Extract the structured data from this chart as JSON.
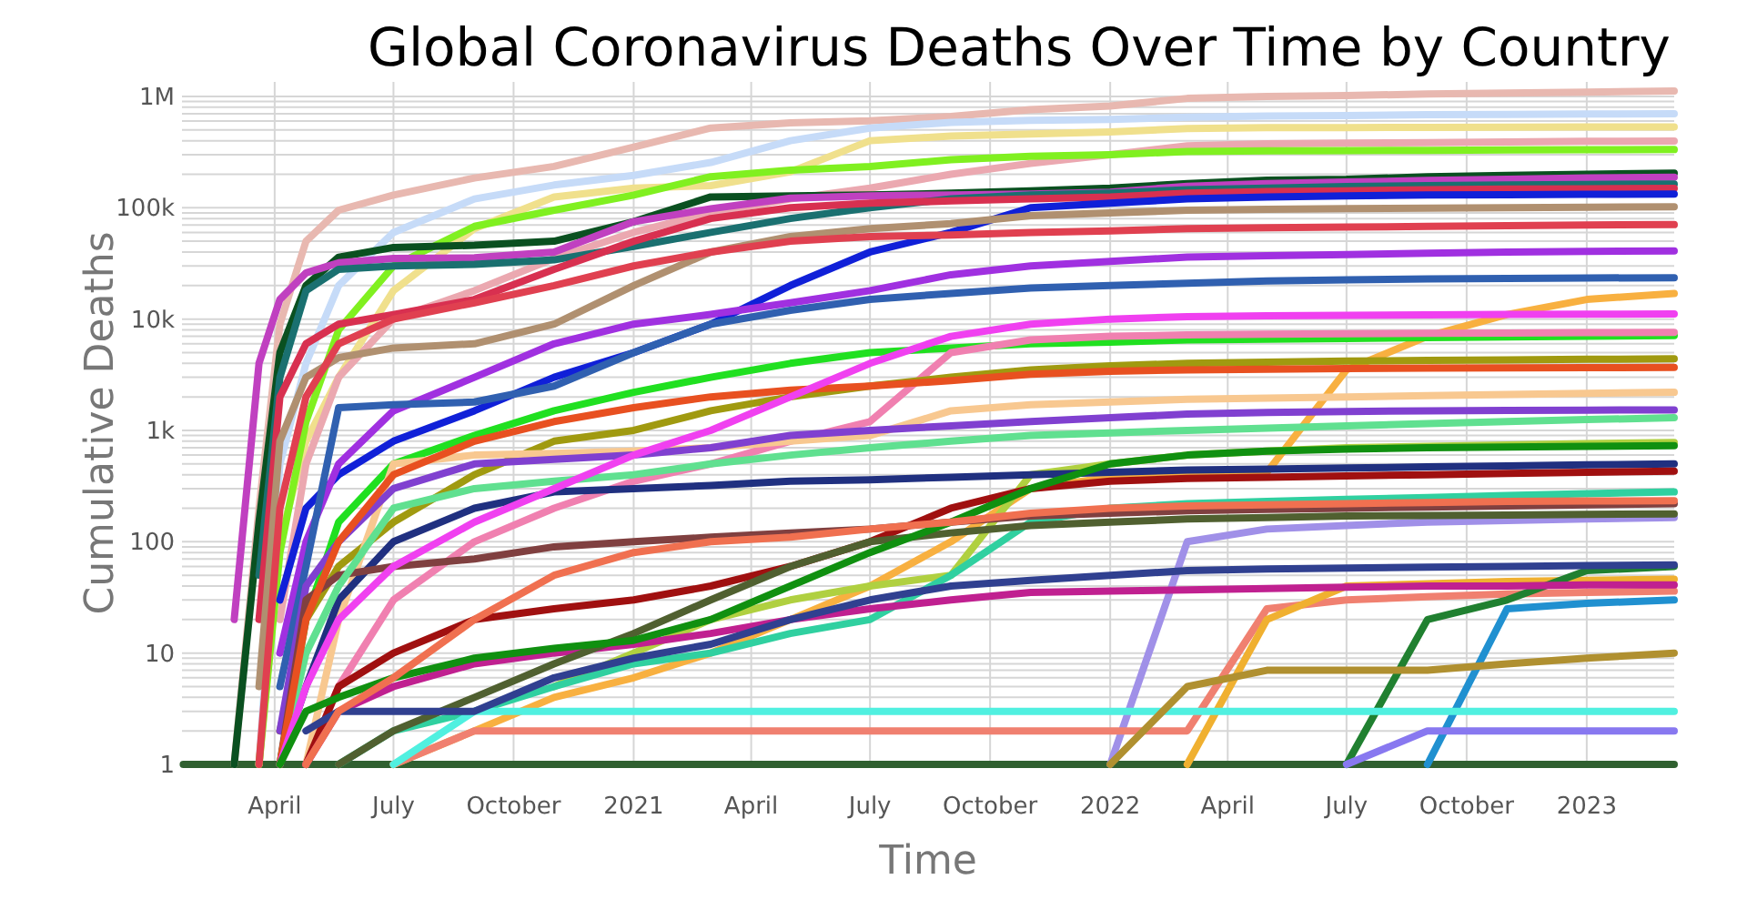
{
  "chart_data": {
    "type": "line",
    "title": "Global Coronavirus Deaths Over Time by Country",
    "xlabel": "Time",
    "ylabel": "Cumulative Deaths",
    "log": true,
    "grid": true,
    "xlim": [
      "2020-01-21",
      "2023-03-09"
    ],
    "ylim": [
      1,
      1350000
    ],
    "xticks": [
      {
        "value": "2020-04-01",
        "label": "April"
      },
      {
        "value": "2020-07-01",
        "label": "July"
      },
      {
        "value": "2020-10-01",
        "label": "October"
      },
      {
        "value": "2021-01-01",
        "label": "2021"
      },
      {
        "value": "2021-04-01",
        "label": "April"
      },
      {
        "value": "2021-07-01",
        "label": "July"
      },
      {
        "value": "2021-10-01",
        "label": "October"
      },
      {
        "value": "2022-01-01",
        "label": "2022"
      },
      {
        "value": "2022-04-01",
        "label": "April"
      },
      {
        "value": "2022-07-01",
        "label": "July"
      },
      {
        "value": "2022-10-01",
        "label": "October"
      },
      {
        "value": "2023-01-01",
        "label": "2023"
      }
    ],
    "yticks": [
      1,
      {
        "value": 2,
        "label": null
      },
      {
        "value": 3,
        "label": null
      },
      {
        "value": 4,
        "label": null
      },
      {
        "value": 5,
        "label": null
      },
      {
        "value": 6,
        "label": null
      },
      {
        "value": 7,
        "label": null
      },
      {
        "value": 8,
        "label": null
      },
      {
        "value": 9,
        "label": null
      },
      10,
      {
        "value": 20,
        "label": null
      },
      {
        "value": 30,
        "label": null
      },
      {
        "value": 40,
        "label": null
      },
      {
        "value": 50,
        "label": null
      },
      {
        "value": 60,
        "label": null
      },
      {
        "value": 70,
        "label": null
      },
      {
        "value": 80,
        "label": null
      },
      {
        "value": 90,
        "label": null
      },
      100,
      {
        "value": 200,
        "label": null
      },
      {
        "value": 300,
        "label": null
      },
      {
        "value": 400,
        "label": null
      },
      {
        "value": 500,
        "label": null
      },
      {
        "value": 600,
        "label": null
      },
      {
        "value": 700,
        "label": null
      },
      {
        "value": 800,
        "label": null
      },
      {
        "value": 900,
        "label": null
      },
      {
        "value": 1000,
        "label": "1k"
      },
      {
        "value": 2000,
        "label": null
      },
      {
        "value": 3000,
        "label": null
      },
      {
        "value": 4000,
        "label": null
      },
      {
        "value": 5000,
        "label": null
      },
      {
        "value": 6000,
        "label": null
      },
      {
        "value": 7000,
        "label": null
      },
      {
        "value": 8000,
        "label": null
      },
      {
        "value": 9000,
        "label": null
      },
      {
        "value": 10000,
        "label": "10k"
      },
      {
        "value": 20000,
        "label": null
      },
      {
        "value": 30000,
        "label": null
      },
      {
        "value": 40000,
        "label": null
      },
      {
        "value": 50000,
        "label": null
      },
      {
        "value": 60000,
        "label": null
      },
      {
        "value": 70000,
        "label": null
      },
      {
        "value": 80000,
        "label": null
      },
      {
        "value": 90000,
        "label": null
      },
      {
        "value": 100000,
        "label": "100k"
      },
      {
        "value": 200000,
        "label": null
      },
      {
        "value": 300000,
        "label": null
      },
      {
        "value": 400000,
        "label": null
      },
      {
        "value": 500000,
        "label": null
      },
      {
        "value": 600000,
        "label": null
      },
      {
        "value": 700000,
        "label": null
      },
      {
        "value": 800000,
        "label": null
      },
      {
        "value": 900000,
        "label": null
      },
      {
        "value": 1000000,
        "label": "1M"
      }
    ],
    "x": [
      "2020-01-22",
      "2020-03-01",
      "2020-03-20",
      "2020-04-05",
      "2020-04-25",
      "2020-05-20",
      "2020-07-01",
      "2020-09-01",
      "2020-11-01",
      "2021-01-01",
      "2021-03-01",
      "2021-05-01",
      "2021-07-01",
      "2021-09-01",
      "2021-11-01",
      "2022-01-01",
      "2022-03-01",
      "2022-05-01",
      "2022-07-01",
      "2022-09-01",
      "2022-11-01",
      "2023-01-01",
      "2023-03-09"
    ],
    "series": [
      {
        "color": "#306030",
        "values": [
          1,
          1,
          1,
          1,
          1,
          1,
          1,
          1,
          1,
          1,
          1,
          1,
          1,
          1,
          1,
          1,
          1,
          1,
          1,
          1,
          1,
          1,
          1
        ]
      },
      {
        "color": "#e8b8b0",
        "values": [
          null,
          1,
          200,
          9000,
          50000,
          95000,
          130000,
          185000,
          235000,
          350000,
          520000,
          580000,
          605000,
          660000,
          760000,
          820000,
          960000,
          1000000,
          1020000,
          1050000,
          1070000,
          1090000,
          1120000
        ]
      },
      {
        "color": "#c6dbf8",
        "values": [
          null,
          null,
          1,
          500,
          4000,
          20000,
          60000,
          120000,
          160000,
          195000,
          255000,
          400000,
          520000,
          585000,
          610000,
          620000,
          650000,
          665000,
          672000,
          685000,
          688000,
          695000,
          700000
        ]
      },
      {
        "color": "#f0e08c",
        "values": [
          null,
          null,
          1,
          100,
          800,
          3000,
          18000,
          65000,
          125000,
          150000,
          158000,
          210000,
          400000,
          440000,
          460000,
          480000,
          515000,
          524000,
          525000,
          528000,
          530000,
          530700,
          530800
        ]
      },
      {
        "color": "#eba8b0",
        "values": [
          null,
          null,
          null,
          20,
          500,
          3000,
          10000,
          18000,
          35000,
          60000,
          90000,
          120000,
          150000,
          200000,
          250000,
          300000,
          360000,
          375000,
          380000,
          385000,
          390000,
          395000,
          398000
        ]
      },
      {
        "color": "#80f020",
        "values": [
          null,
          null,
          1,
          80,
          1200,
          8000,
          30000,
          68000,
          95000,
          130000,
          190000,
          218000,
          235000,
          270000,
          290000,
          300000,
          320000,
          324000,
          326000,
          328000,
          330000,
          332000,
          333000
        ]
      },
      {
        "color": "#0a5020",
        "values": [
          null,
          1,
          150,
          5000,
          20000,
          36000,
          44000,
          46000,
          50000,
          75000,
          125000,
          128000,
          130000,
          135000,
          142000,
          150000,
          165000,
          177000,
          180000,
          190000,
          195000,
          200000,
          205000
        ]
      },
      {
        "color": "#c040c0",
        "values": [
          null,
          20,
          4000,
          15000,
          26000,
          32000,
          35000,
          35500,
          40000,
          75000,
          98000,
          122000,
          128000,
          130000,
          133000,
          138000,
          156000,
          165000,
          170000,
          176000,
          180000,
          185000,
          188000
        ]
      },
      {
        "color": "#1a7070",
        "values": [
          null,
          null,
          50,
          3000,
          18000,
          28000,
          30000,
          31000,
          34000,
          45000,
          60000,
          80000,
          100000,
          120000,
          130000,
          135000,
          145000,
          150000,
          155000,
          158000,
          160000,
          162000,
          163000
        ]
      },
      {
        "color": "#d83050",
        "values": [
          null,
          null,
          20,
          2000,
          6000,
          9000,
          11000,
          15000,
          28000,
          50000,
          80000,
          100000,
          110000,
          115000,
          120000,
          125000,
          135000,
          140000,
          142000,
          145000,
          147000,
          148000,
          149000
        ]
      },
      {
        "color": "#1020d8",
        "values": [
          null,
          null,
          null,
          30,
          200,
          400,
          800,
          1500,
          3000,
          5000,
          9000,
          20000,
          40000,
          60000,
          100000,
          110000,
          120000,
          125000,
          128000,
          130000,
          131000,
          132000,
          133000
        ]
      },
      {
        "color": "#b09070",
        "values": [
          null,
          null,
          5,
          800,
          3000,
          4500,
          5500,
          6000,
          9000,
          20000,
          40000,
          55000,
          65000,
          72000,
          85000,
          90000,
          95000,
          97000,
          98000,
          99000,
          100000,
          101000,
          102000
        ]
      },
      {
        "color": "#e04050",
        "values": [
          null,
          null,
          1,
          200,
          2000,
          6000,
          10000,
          14000,
          20000,
          30000,
          40000,
          50000,
          55000,
          57000,
          60000,
          62000,
          65000,
          66000,
          67000,
          68000,
          69000,
          70000,
          70500
        ]
      },
      {
        "color": "#a030e0",
        "values": [
          null,
          null,
          null,
          10,
          100,
          500,
          1500,
          3000,
          6000,
          9000,
          11000,
          14000,
          18000,
          25000,
          30000,
          33000,
          36000,
          37000,
          38000,
          39000,
          40000,
          40500,
          41000
        ]
      },
      {
        "color": "#3060b0",
        "values": [
          null,
          null,
          null,
          5,
          60,
          1600,
          1700,
          1800,
          2500,
          5000,
          9000,
          12000,
          15000,
          17000,
          19000,
          20000,
          21000,
          22000,
          22500,
          23000,
          23200,
          23400,
          23500
        ]
      },
      {
        "color": "#f8b040",
        "values": [
          null,
          null,
          null,
          null,
          null,
          null,
          1,
          2,
          4,
          6,
          10,
          20,
          40,
          100,
          300,
          380,
          400,
          420,
          3500,
          7000,
          11000,
          15000,
          17000
        ]
      },
      {
        "color": "#20e020",
        "values": [
          null,
          null,
          null,
          1,
          20,
          150,
          500,
          900,
          1500,
          2200,
          3000,
          4000,
          5000,
          5500,
          6000,
          6200,
          6500,
          6600,
          6700,
          6800,
          6900,
          7000,
          7100
        ]
      },
      {
        "color": "#f080b0",
        "values": [
          null,
          null,
          null,
          null,
          1,
          5,
          30,
          100,
          200,
          350,
          500,
          800,
          1200,
          5000,
          6500,
          7000,
          7200,
          7300,
          7400,
          7450,
          7500,
          7550,
          7600
        ]
      },
      {
        "color": "#a09a10",
        "values": [
          null,
          null,
          null,
          2,
          20,
          60,
          150,
          400,
          800,
          1000,
          1500,
          2000,
          2500,
          3000,
          3500,
          3800,
          4000,
          4100,
          4200,
          4250,
          4300,
          4350,
          4400
        ]
      },
      {
        "color": "#f8c890",
        "values": [
          null,
          null,
          null,
          null,
          1,
          20,
          500,
          600,
          620,
          650,
          700,
          800,
          900,
          1500,
          1700,
          1800,
          1900,
          1950,
          2000,
          2050,
          2100,
          2150,
          2200
        ]
      },
      {
        "color": "#8040d0",
        "values": [
          null,
          null,
          null,
          2,
          40,
          100,
          300,
          500,
          550,
          600,
          700,
          900,
          1000,
          1100,
          1200,
          1300,
          1400,
          1450,
          1480,
          1500,
          1510,
          1520,
          1530
        ]
      },
      {
        "color": "#b0d040",
        "values": [
          null,
          null,
          null,
          null,
          null,
          null,
          null,
          null,
          5,
          10,
          20,
          30,
          40,
          50,
          400,
          500,
          600,
          650,
          700,
          720,
          740,
          760,
          780
        ]
      },
      {
        "color": "#203080",
        "values": [
          null,
          null,
          null,
          1,
          5,
          30,
          100,
          200,
          280,
          300,
          320,
          350,
          360,
          380,
          400,
          420,
          440,
          450,
          460,
          470,
          480,
          490,
          500
        ]
      },
      {
        "color": "#30d0a0",
        "values": [
          null,
          null,
          null,
          null,
          null,
          1,
          2,
          3,
          5,
          8,
          10,
          15,
          20,
          50,
          150,
          200,
          220,
          230,
          240,
          250,
          260,
          270,
          280
        ]
      },
      {
        "color": "#804040",
        "values": [
          null,
          null,
          null,
          1,
          30,
          50,
          60,
          70,
          90,
          100,
          110,
          120,
          130,
          150,
          170,
          180,
          190,
          195,
          200,
          205,
          210,
          215,
          220
        ]
      },
      {
        "color": "#60e090",
        "values": [
          null,
          null,
          null,
          1,
          10,
          40,
          200,
          300,
          350,
          400,
          500,
          600,
          700,
          800,
          900,
          950,
          1000,
          1050,
          1100,
          1150,
          1200,
          1250,
          1300
        ]
      },
      {
        "color": "#a01010",
        "values": [
          null,
          null,
          null,
          null,
          1,
          5,
          10,
          20,
          25,
          30,
          40,
          60,
          100,
          200,
          300,
          350,
          370,
          380,
          390,
          400,
          410,
          420,
          430
        ]
      },
      {
        "color": "#a090e8",
        "values": [
          null,
          null,
          null,
          null,
          null,
          null,
          null,
          null,
          null,
          null,
          null,
          null,
          null,
          null,
          null,
          1,
          100,
          130,
          140,
          150,
          155,
          160,
          165
        ]
      },
      {
        "color": "#f08070",
        "values": [
          null,
          null,
          null,
          null,
          null,
          null,
          1,
          2,
          2,
          2,
          2,
          2,
          2,
          2,
          2,
          2,
          2,
          25,
          30,
          32,
          34,
          35,
          36
        ]
      },
      {
        "color": "#f0b030",
        "values": [
          null,
          null,
          null,
          null,
          null,
          null,
          null,
          null,
          null,
          null,
          null,
          null,
          null,
          null,
          null,
          null,
          1,
          20,
          40,
          42,
          44,
          45,
          46
        ]
      },
      {
        "color": "#208030",
        "values": [
          null,
          null,
          null,
          null,
          null,
          null,
          null,
          null,
          null,
          null,
          null,
          null,
          null,
          null,
          null,
          null,
          null,
          null,
          1,
          20,
          30,
          55,
          60
        ]
      },
      {
        "color": "#2090d0",
        "values": [
          null,
          null,
          null,
          null,
          null,
          null,
          null,
          null,
          null,
          null,
          null,
          null,
          null,
          null,
          null,
          null,
          null,
          null,
          null,
          1,
          25,
          28,
          30
        ]
      },
      {
        "color": "#8878f0",
        "values": [
          null,
          null,
          null,
          null,
          null,
          null,
          null,
          null,
          null,
          null,
          null,
          null,
          null,
          null,
          null,
          null,
          null,
          null,
          1,
          2,
          2,
          2,
          2
        ]
      },
      {
        "color": "#50f0e0",
        "values": [
          null,
          null,
          null,
          null,
          null,
          null,
          1,
          3,
          3,
          3,
          3,
          3,
          3,
          3,
          3,
          3,
          3,
          3,
          3,
          3,
          3,
          3,
          3
        ]
      },
      {
        "color": "#b09030",
        "values": [
          null,
          null,
          null,
          null,
          null,
          null,
          null,
          null,
          null,
          null,
          null,
          null,
          null,
          null,
          null,
          1,
          5,
          7,
          7,
          7,
          8,
          9,
          10
        ]
      },
      {
        "color": "#c02090",
        "values": [
          null,
          null,
          null,
          null,
          1,
          3,
          5,
          8,
          10,
          12,
          15,
          20,
          25,
          30,
          35,
          36,
          37,
          38,
          39,
          40,
          40,
          41,
          41
        ]
      },
      {
        "color": "#e85020",
        "values": [
          null,
          null,
          null,
          1,
          20,
          100,
          400,
          800,
          1200,
          1600,
          2000,
          2300,
          2500,
          2800,
          3200,
          3400,
          3500,
          3550,
          3600,
          3620,
          3640,
          3660,
          3680
        ]
      },
      {
        "color": "#506030",
        "values": [
          null,
          null,
          null,
          null,
          null,
          1,
          2,
          4,
          8,
          15,
          30,
          60,
          100,
          120,
          140,
          150,
          160,
          165,
          170,
          172,
          174,
          176,
          178
        ]
      },
      {
        "color": "#f040f0",
        "values": [
          null,
          null,
          null,
          1,
          5,
          20,
          60,
          150,
          300,
          600,
          1000,
          2000,
          4000,
          7000,
          9000,
          10000,
          10500,
          10700,
          10800,
          10900,
          11000,
          11050,
          11100
        ]
      },
      {
        "color": "#109010",
        "values": [
          null,
          null,
          null,
          1,
          3,
          4,
          6,
          9,
          11,
          13,
          20,
          40,
          80,
          150,
          300,
          500,
          600,
          650,
          680,
          700,
          710,
          720,
          730
        ]
      },
      {
        "color": "#304090",
        "values": [
          null,
          null,
          null,
          null,
          2,
          3,
          3,
          3,
          6,
          9,
          12,
          20,
          30,
          40,
          45,
          50,
          55,
          57,
          58,
          59,
          60,
          61,
          62
        ]
      },
      {
        "color": "#f07050",
        "values": [
          null,
          null,
          null,
          null,
          1,
          3,
          6,
          20,
          50,
          80,
          100,
          110,
          130,
          150,
          180,
          200,
          210,
          215,
          220,
          225,
          230,
          232,
          234
        ]
      }
    ]
  }
}
